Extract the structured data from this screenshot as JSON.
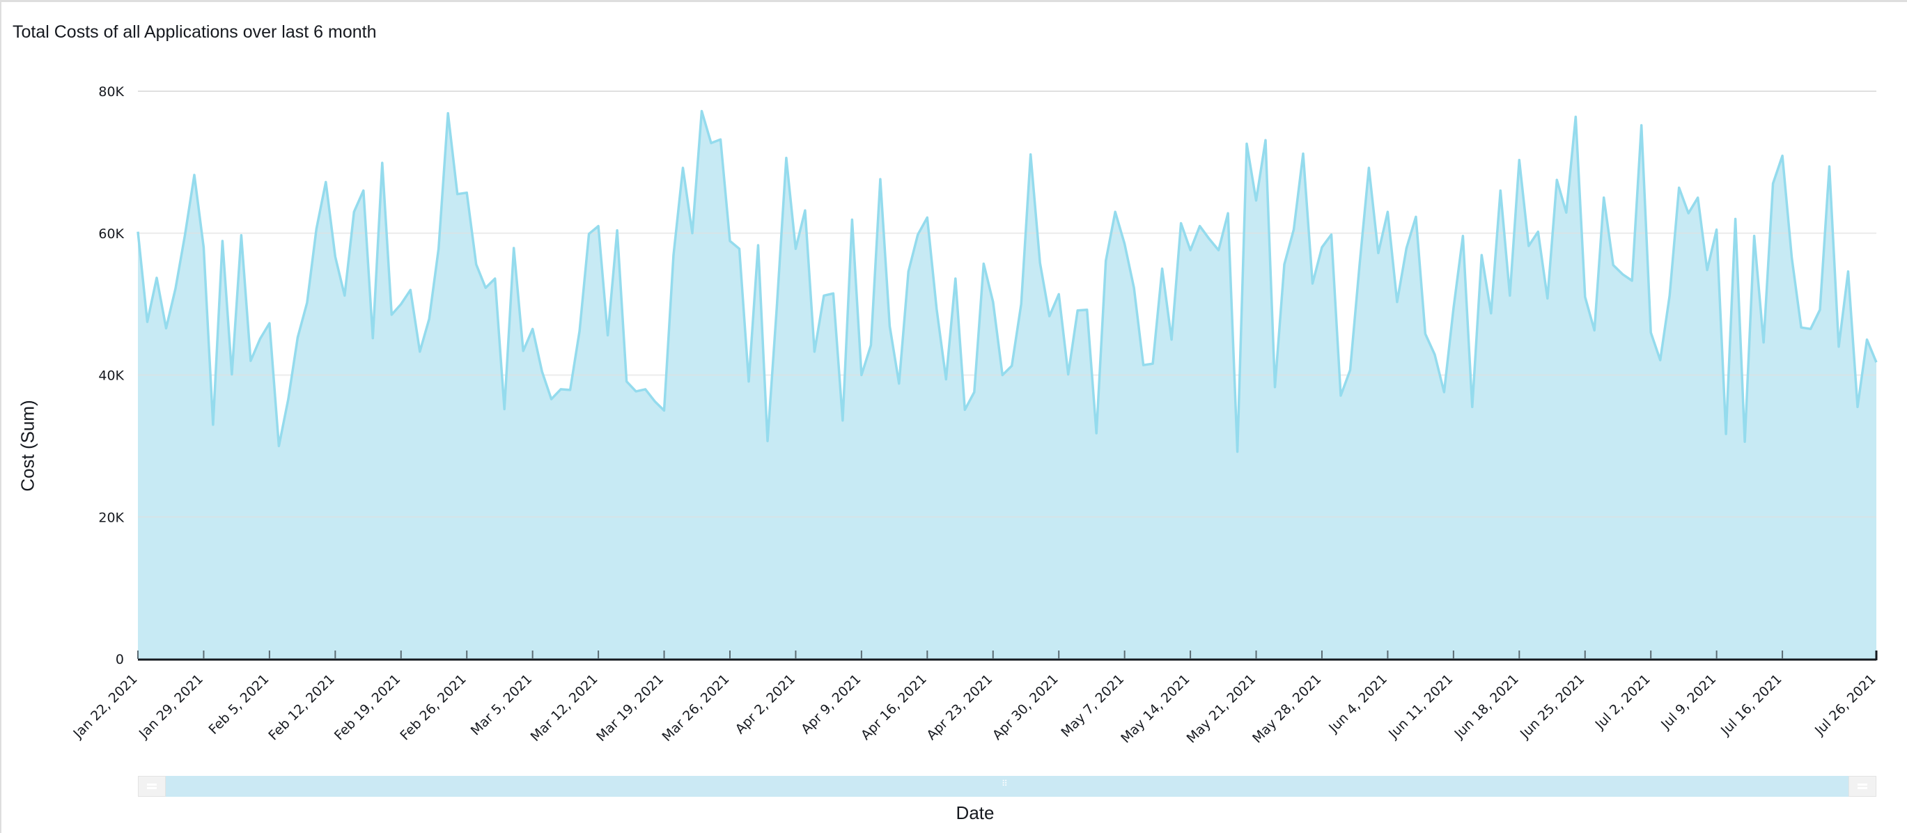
{
  "title": "Total Costs of all Applications over last 6 month",
  "axes": {
    "y_label": "Cost (Sum)",
    "x_label": "Date"
  },
  "colors": {
    "line": "#94dbed",
    "fill": "#c7eaf4",
    "grid": "#e0e0e0",
    "axis": "#16191f",
    "tick": "#5b6b73",
    "scrollbar": "#cbe9f4"
  },
  "scrollbar": {
    "grip_icon": "grip-dots-icon"
  },
  "chart_data": {
    "type": "area",
    "title": "Total Costs of all Applications over last 6 month",
    "xlabel": "Date",
    "ylabel": "Cost (Sum)",
    "ylim": [
      0,
      80000
    ],
    "yticks": [
      0,
      20000,
      40000,
      60000,
      80000
    ],
    "ytick_labels": [
      "0",
      "20K",
      "40K",
      "60K",
      "80K"
    ],
    "x_start": "2021-01-22",
    "x_end": "2021-07-26",
    "x_interval": "1 day",
    "xtick_labels": [
      "Jan 22, 2021",
      "Jan 29, 2021",
      "Feb 5, 2021",
      "Feb 12, 2021",
      "Feb 19, 2021",
      "Feb 26, 2021",
      "Mar 5, 2021",
      "Mar 12, 2021",
      "Mar 19, 2021",
      "Mar 26, 2021",
      "Apr 2, 2021",
      "Apr 9, 2021",
      "Apr 16, 2021",
      "Apr 23, 2021",
      "Apr 30, 2021",
      "May 7, 2021",
      "May 14, 2021",
      "May 21, 2021",
      "May 28, 2021",
      "Jun 4, 2021",
      "Jun 11, 2021",
      "Jun 18, 2021",
      "Jun 25, 2021",
      "Jul 2, 2021",
      "Jul 9, 2021",
      "Jul 16, 2021",
      "Jul 26, 2021"
    ],
    "xtick_day_offsets": [
      0,
      7,
      14,
      21,
      28,
      35,
      42,
      49,
      56,
      63,
      70,
      77,
      84,
      91,
      98,
      105,
      112,
      119,
      126,
      133,
      140,
      147,
      154,
      161,
      168,
      175,
      185
    ],
    "grid": true,
    "legend": null,
    "series": [
      {
        "name": "Cost (Sum)",
        "values": [
          60200,
          47500,
          53700,
          46600,
          52200,
          59700,
          68200,
          58000,
          33000,
          58900,
          40100,
          59700,
          42000,
          45100,
          47300,
          30000,
          36600,
          45300,
          50200,
          60600,
          67200,
          56700,
          51200,
          63000,
          66000,
          45200,
          69900,
          48500,
          50000,
          52000,
          43300,
          47900,
          57800,
          76900,
          65500,
          65700,
          55600,
          52300,
          53600,
          35200,
          57900,
          43400,
          46500,
          40500,
          36600,
          38000,
          37900,
          46200,
          59900,
          61000,
          45600,
          60400,
          39100,
          37700,
          38000,
          36300,
          35000,
          56900,
          69200,
          60000,
          77200,
          72700,
          73200,
          58900,
          57800,
          39100,
          58300,
          30700,
          49700,
          70600,
          57800,
          63200,
          43300,
          51200,
          51500,
          33600,
          61900,
          40000,
          44200,
          67600,
          46900,
          38800,
          54600,
          59800,
          62200,
          49300,
          39400,
          53600,
          35100,
          37600,
          55700,
          50300,
          40000,
          41300,
          50000,
          71100,
          55800,
          48300,
          51400,
          40100,
          49100,
          49200,
          31800,
          56100,
          63000,
          58500,
          52300,
          41400,
          41600,
          55000,
          45000,
          61400,
          57600,
          61000,
          59200,
          57600,
          62800,
          29200,
          72600,
          64600,
          73100,
          38300,
          55600,
          60500,
          71200,
          52900,
          58000,
          59800,
          37100,
          40700,
          55400,
          69200,
          57200,
          63000,
          50300,
          57900,
          62300,
          45800,
          42900,
          37600,
          49400,
          59600,
          35500,
          56900,
          48700,
          66000,
          51200,
          70300,
          58200,
          60200,
          50800,
          67500,
          62900,
          76400,
          51000,
          46300,
          65000,
          55500,
          54200,
          53300,
          75200,
          46000,
          42100,
          51200,
          66400,
          62800,
          65000,
          54800,
          60500,
          31700,
          62000,
          30600,
          59600,
          44600,
          67000,
          70900,
          56500,
          46700,
          46500,
          49200,
          69400,
          44000,
          54600,
          35500,
          45000,
          41800
        ]
      }
    ]
  }
}
